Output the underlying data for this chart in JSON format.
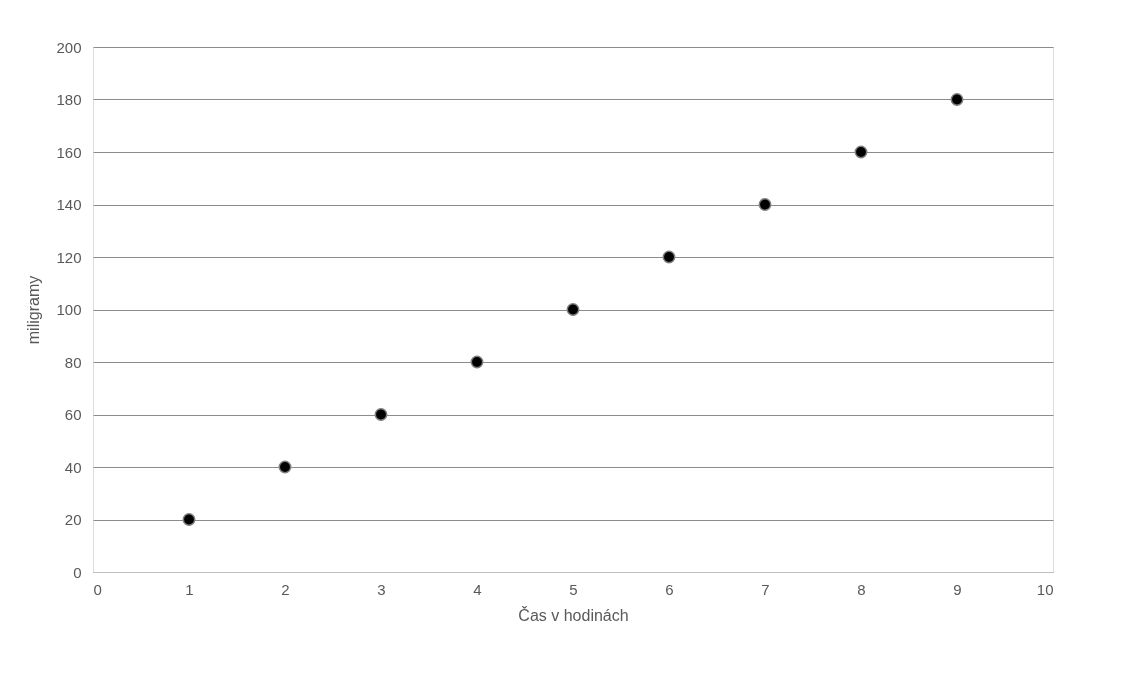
{
  "chart_data": {
    "type": "scatter",
    "xlabel": "Čas v hodinách",
    "ylabel": "miligramy",
    "x": [
      1,
      2,
      3,
      4,
      5,
      6,
      7,
      8,
      9
    ],
    "series": [
      {
        "color": "#000000",
        "values": [
          20,
          40,
          60,
          80,
          100,
          120,
          140,
          160,
          180
        ]
      }
    ],
    "xlim": [
      0,
      10
    ],
    "xticks": [
      0,
      1,
      2,
      3,
      4,
      5,
      6,
      7,
      8,
      9,
      10
    ],
    "ylim": [
      0,
      200
    ],
    "yticks": [
      0,
      20,
      40,
      60,
      80,
      100,
      120,
      140,
      160,
      180,
      200
    ],
    "grid": "y",
    "marker": "circle"
  }
}
